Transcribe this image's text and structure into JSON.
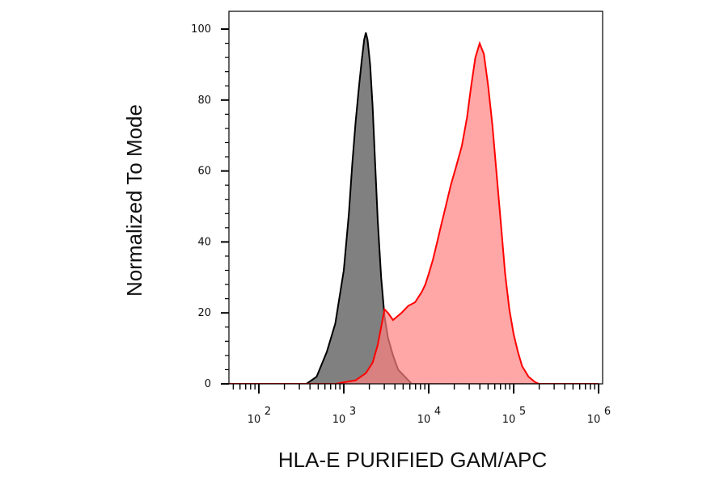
{
  "chart_data": {
    "type": "area",
    "title": "",
    "xlabel": "HLA-E PURIFIED GAM/APC",
    "ylabel": "Normalized To Mode",
    "x_scale": "log",
    "xlim": [
      10,
      1000000
    ],
    "ylim": [
      0,
      100
    ],
    "grid": false,
    "yticks": [
      {
        "value": 0,
        "label": "0"
      },
      {
        "value": 20,
        "label": "20"
      },
      {
        "value": 40,
        "label": "40"
      },
      {
        "value": 60,
        "label": "60"
      },
      {
        "value": 80,
        "label": "80"
      },
      {
        "value": 100,
        "label": "100"
      }
    ],
    "xticks": [
      {
        "value": 100,
        "base": "10",
        "exp": "2"
      },
      {
        "value": 1000,
        "base": "10",
        "exp": "3"
      },
      {
        "value": 10000,
        "base": "10",
        "exp": "4"
      },
      {
        "value": 100000,
        "base": "10",
        "exp": "5"
      },
      {
        "value": 1000000,
        "base": "10",
        "exp": "6"
      }
    ],
    "series": [
      {
        "color": "#808080",
        "fill": "#808080",
        "stroke": "#000000",
        "points": [
          [
            1,
            0
          ],
          [
            363,
            0
          ],
          [
            479,
            2
          ],
          [
            631,
            9
          ],
          [
            794,
            17
          ],
          [
            1000,
            32
          ],
          [
            1148,
            48
          ],
          [
            1259,
            62
          ],
          [
            1380,
            74
          ],
          [
            1514,
            84
          ],
          [
            1622,
            91
          ],
          [
            1738,
            97
          ],
          [
            1820,
            99
          ],
          [
            1905,
            97
          ],
          [
            2042,
            90
          ],
          [
            2188,
            78
          ],
          [
            2344,
            62
          ],
          [
            2512,
            46
          ],
          [
            2754,
            30
          ],
          [
            3020,
            19
          ],
          [
            3311,
            13
          ],
          [
            3802,
            8
          ],
          [
            4365,
            4
          ],
          [
            5248,
            2
          ],
          [
            6310,
            0
          ],
          [
            1000000,
            0
          ]
        ]
      },
      {
        "color": "#ff8080",
        "fill": "#ff8080",
        "stroke": "#ff0000",
        "points": [
          [
            1,
            0
          ],
          [
            794,
            0
          ],
          [
            1380,
            1
          ],
          [
            1820,
            3
          ],
          [
            2188,
            6
          ],
          [
            2512,
            11
          ],
          [
            2754,
            16
          ],
          [
            3020,
            21
          ],
          [
            3311,
            20
          ],
          [
            3802,
            18
          ],
          [
            4786,
            20
          ],
          [
            5754,
            22
          ],
          [
            6918,
            23
          ],
          [
            8318,
            26
          ],
          [
            9120,
            28
          ],
          [
            10000,
            31
          ],
          [
            11220,
            35
          ],
          [
            12589,
            40
          ],
          [
            14125,
            45
          ],
          [
            15849,
            50
          ],
          [
            18197,
            56
          ],
          [
            20893,
            61
          ],
          [
            24547,
            67
          ],
          [
            28184,
            75
          ],
          [
            31623,
            84
          ],
          [
            35481,
            92
          ],
          [
            39811,
            96
          ],
          [
            44668,
            93
          ],
          [
            50119,
            84
          ],
          [
            56234,
            73
          ],
          [
            63096,
            59
          ],
          [
            70795,
            45
          ],
          [
            79433,
            31
          ],
          [
            89125,
            21
          ],
          [
            100000,
            14
          ],
          [
            112202,
            9
          ],
          [
            125893,
            5
          ],
          [
            149624,
            2
          ],
          [
            177828,
            0.5
          ],
          [
            199526,
            0
          ],
          [
            1000000,
            0
          ]
        ]
      }
    ]
  }
}
